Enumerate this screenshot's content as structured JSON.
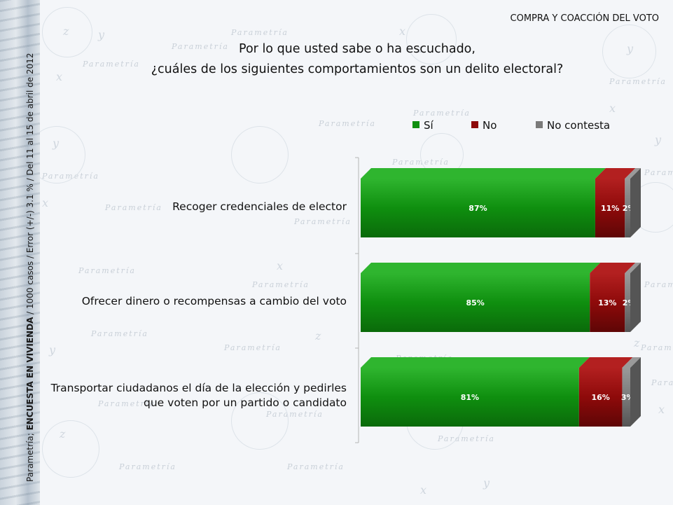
{
  "header": {
    "section_title": "COMPRA Y COACCIÓN DEL VOTO",
    "question_line1": "Por lo que usted sabe o ha escuchado,",
    "question_line2": "¿cuáles de los siguientes comportamientos son un delito electoral?"
  },
  "sidebar": {
    "source_prefix": "Parametría; ",
    "source_bold": "ENCUESTA EN VIVIENDA",
    "source_rest": " / 1000 casos / Error (+/-) 3.1 % / Del 11 al 15 de abril de 2012"
  },
  "watermark": {
    "brand": "Parametría",
    "axis_x": "x",
    "axis_y": "y",
    "axis_z": "z"
  },
  "colors": {
    "si": "#0f8f0f",
    "no": "#8e0a0a",
    "nc": "#7a7a7a"
  },
  "chart_data": {
    "type": "bar",
    "orientation": "horizontal",
    "stacked": true,
    "percent_scale": true,
    "style": "3d",
    "legend_position": "top",
    "categories": [
      "Recoger credenciales de elector",
      "Ofrecer dinero o recompensas a cambio del voto",
      "Transportar ciudadanos el día de la elección y pedirles que voten por un partido o candidato"
    ],
    "category_lines": [
      [
        "Recoger credenciales de elector"
      ],
      [
        "Ofrecer dinero o recompensas a cambio del voto"
      ],
      [
        "Transportar ciudadanos el día de la elección y pedirles",
        "que voten por un partido o candidato"
      ]
    ],
    "series": [
      {
        "name": "Sí",
        "values": [
          87,
          85,
          81
        ],
        "labels": [
          "87%",
          "85%",
          "81%"
        ]
      },
      {
        "name": "No",
        "values": [
          11,
          13,
          16
        ],
        "labels": [
          "11%",
          "13%",
          "16%"
        ]
      },
      {
        "name": "No contesta",
        "values": [
          2,
          2,
          3
        ],
        "labels": [
          "2%",
          "2%",
          "3%"
        ]
      }
    ]
  }
}
